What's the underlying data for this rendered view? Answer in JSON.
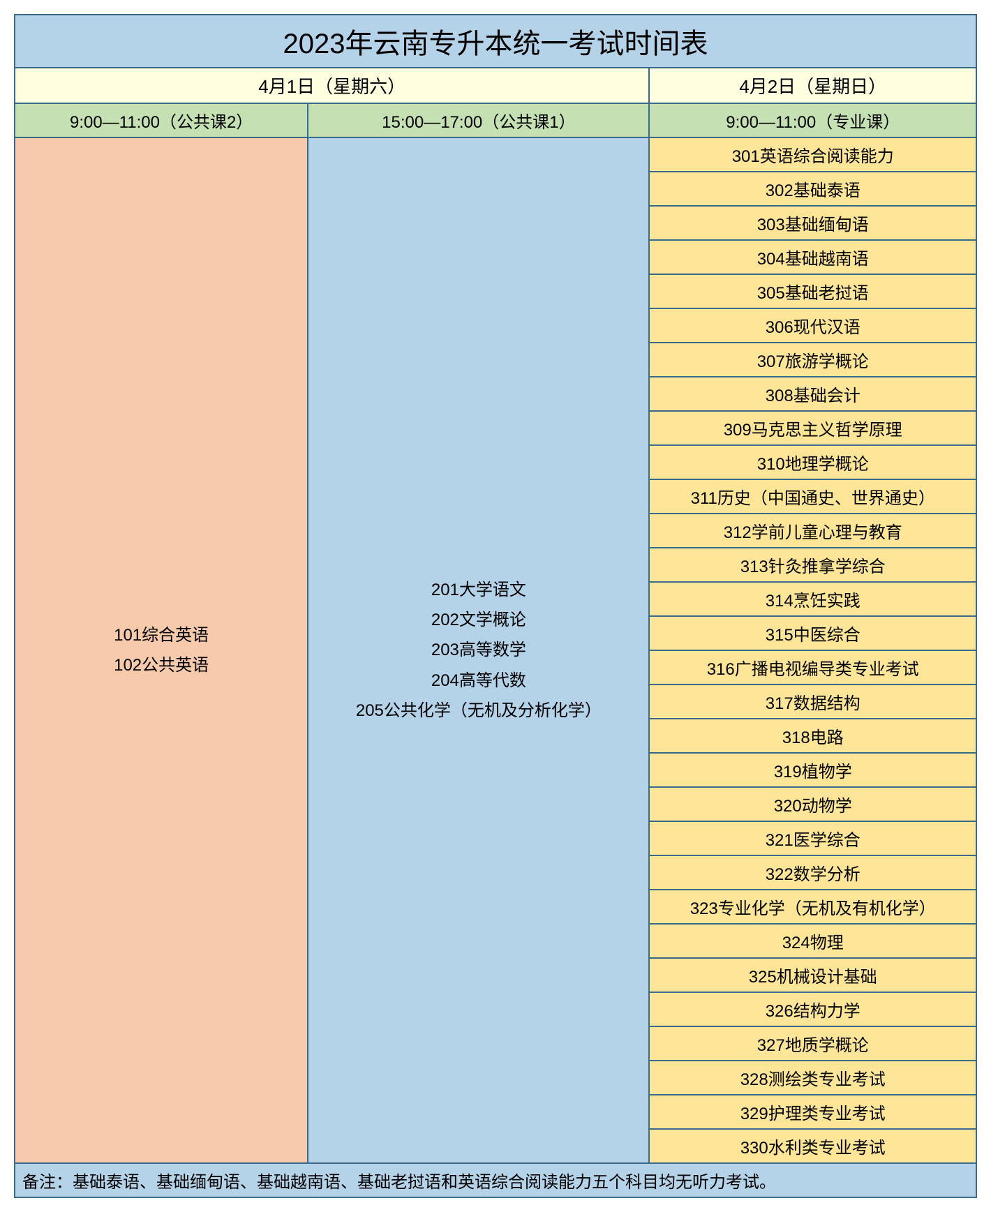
{
  "title": "2023年云南专升本统一考试时间表",
  "dates": {
    "day1": "4月1日（星期六）",
    "day2": "4月2日（星期日）"
  },
  "timeslots": {
    "slot1": "9:00—11:00（公共课2）",
    "slot2": "15:00—17:00（公共课1）",
    "slot3": "9:00—11:00（专业课）"
  },
  "column1": {
    "lines": [
      "101综合英语",
      "102公共英语"
    ]
  },
  "column2": {
    "lines": [
      "201大学语文",
      "202文学概论",
      "203高等数学",
      "204高等代数",
      "205公共化学（无机及分析化学）"
    ]
  },
  "column3": {
    "courses": [
      "301英语综合阅读能力",
      "302基础泰语",
      "303基础缅甸语",
      "304基础越南语",
      "305基础老挝语",
      "306现代汉语",
      "307旅游学概论",
      "308基础会计",
      "309马克思主义哲学原理",
      "310地理学概论",
      "311历史（中国通史、世界通史）",
      "312学前儿童心理与教育",
      "313针灸推拿学综合",
      "314烹饪实践",
      "315中医综合",
      "316广播电视编导类专业考试",
      "317数据结构",
      "318电路",
      "319植物学",
      "320动物学",
      "321医学综合",
      "322数学分析",
      "323专业化学（无机及有机化学）",
      "324物理",
      "325机械设计基础",
      "326结构力学",
      "327地质学概论",
      "328测绘类专业考试",
      "329护理类专业考试",
      "330水利类专业考试"
    ]
  },
  "footnote": "备注：基础泰语、基础缅甸语、基础越南语、基础老挝语和英语综合阅读能力五个科目均无听力考试。",
  "colors": {
    "border": "#3a6a8a",
    "title_bg": "#b4d2e8",
    "date_bg": "#ffffe0",
    "time_bg": "#c5e0b3",
    "col1_bg": "#f7caac",
    "col2_bg": "#b4d2e8",
    "col3_bg": "#ffe597",
    "footnote_bg": "#b4d2e8"
  }
}
